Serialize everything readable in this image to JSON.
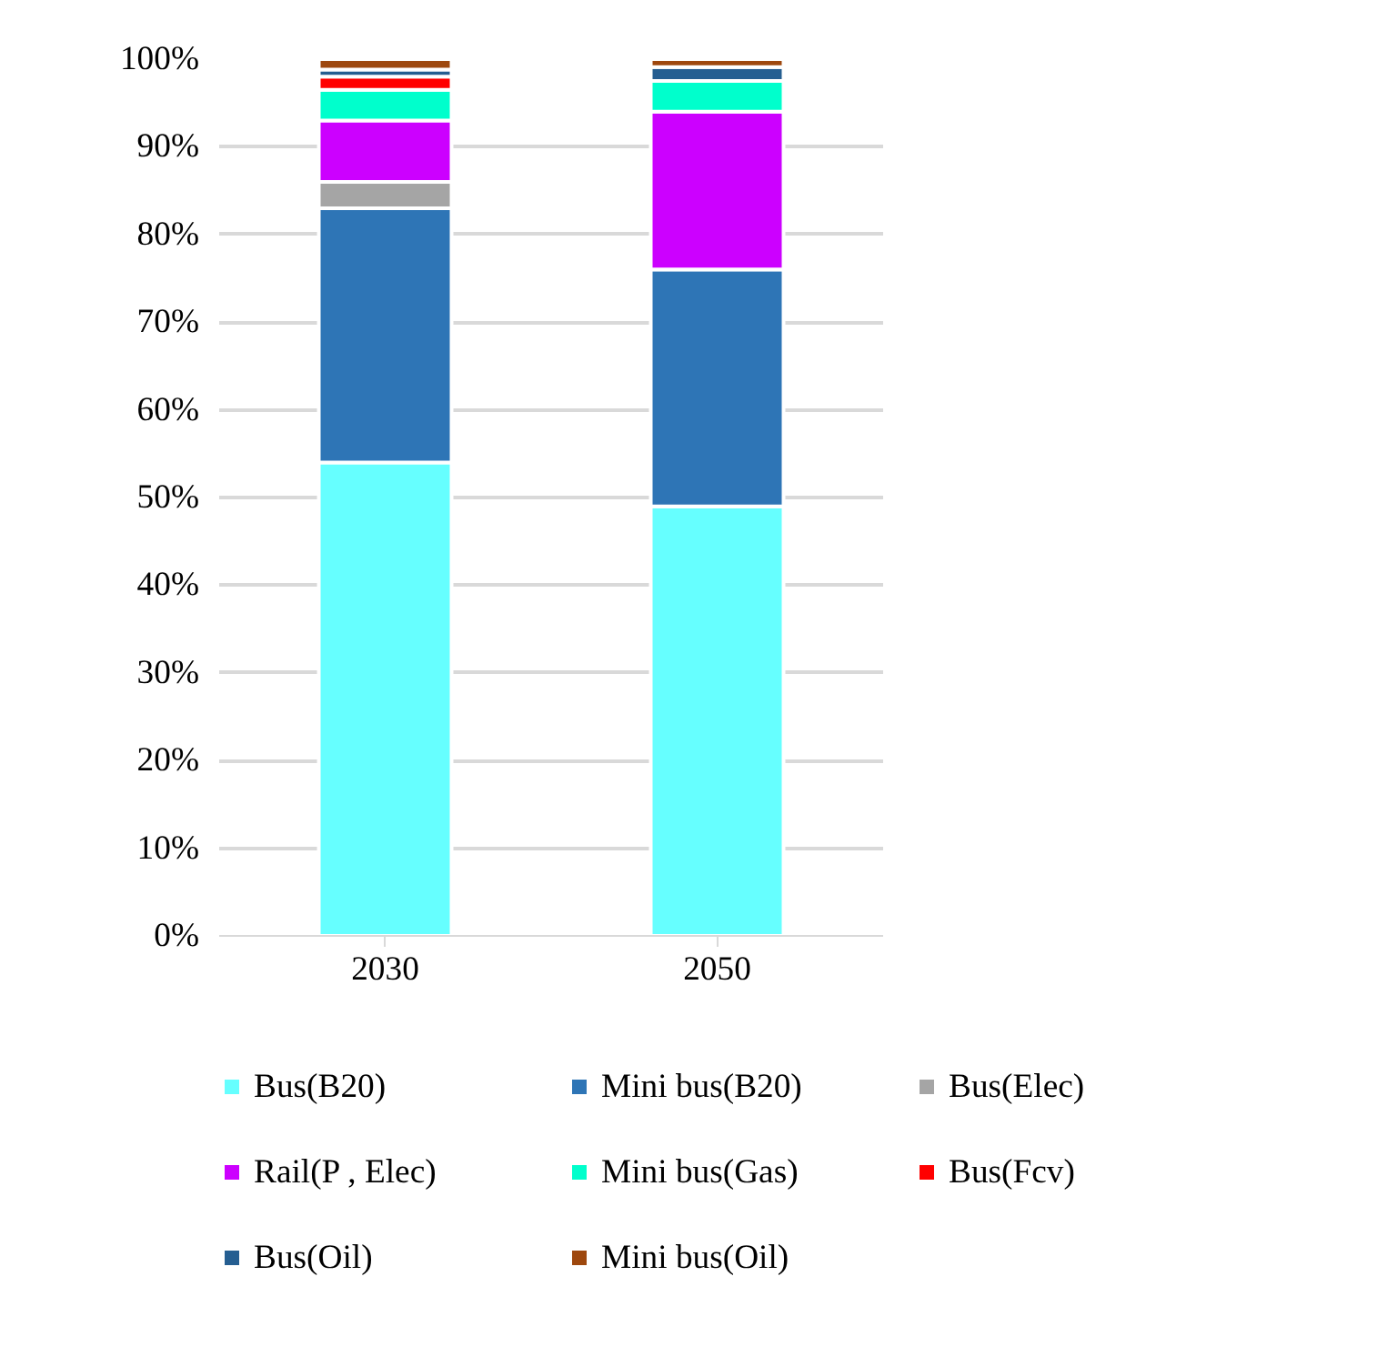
{
  "chart_data": {
    "type": "bar",
    "stacked": true,
    "categories": [
      "2030",
      "2050"
    ],
    "series": [
      {
        "name": "Bus(B20)",
        "color": "#66ffff",
        "values": [
          54,
          49
        ]
      },
      {
        "name": "Mini bus(B20)",
        "color": "#2e75b6",
        "values": [
          29,
          27
        ]
      },
      {
        "name": "Bus(Elec)",
        "color": "#a5a5a5",
        "values": [
          3,
          0
        ]
      },
      {
        "name": "Rail(P , Elec)",
        "color": "#cc00ff",
        "values": [
          7,
          18
        ]
      },
      {
        "name": "Mini bus(Gas)",
        "color": "#00ffcc",
        "values": [
          3.5,
          3.5
        ]
      },
      {
        "name": "Bus(Fcv)",
        "color": "#ff0000",
        "values": [
          1.5,
          0
        ]
      },
      {
        "name": "Bus(Oil)",
        "color": "#255e91",
        "values": [
          0.8,
          1.6
        ]
      },
      {
        "name": "Mini bus(Oil)",
        "color": "#9e480e",
        "values": [
          1.2,
          0.9
        ]
      }
    ],
    "ylim": [
      0,
      100
    ],
    "yticks": [
      {
        "value": 0,
        "label": "0%"
      },
      {
        "value": 10,
        "label": "10%"
      },
      {
        "value": 20,
        "label": "20%"
      },
      {
        "value": 30,
        "label": "30%"
      },
      {
        "value": 40,
        "label": "40%"
      },
      {
        "value": 50,
        "label": "50%"
      },
      {
        "value": 60,
        "label": "60%"
      },
      {
        "value": 70,
        "label": "70%"
      },
      {
        "value": 80,
        "label": "80%"
      },
      {
        "value": 90,
        "label": "90%"
      },
      {
        "value": 100,
        "label": "100%"
      }
    ],
    "grid": "y",
    "legend": "bottom"
  }
}
